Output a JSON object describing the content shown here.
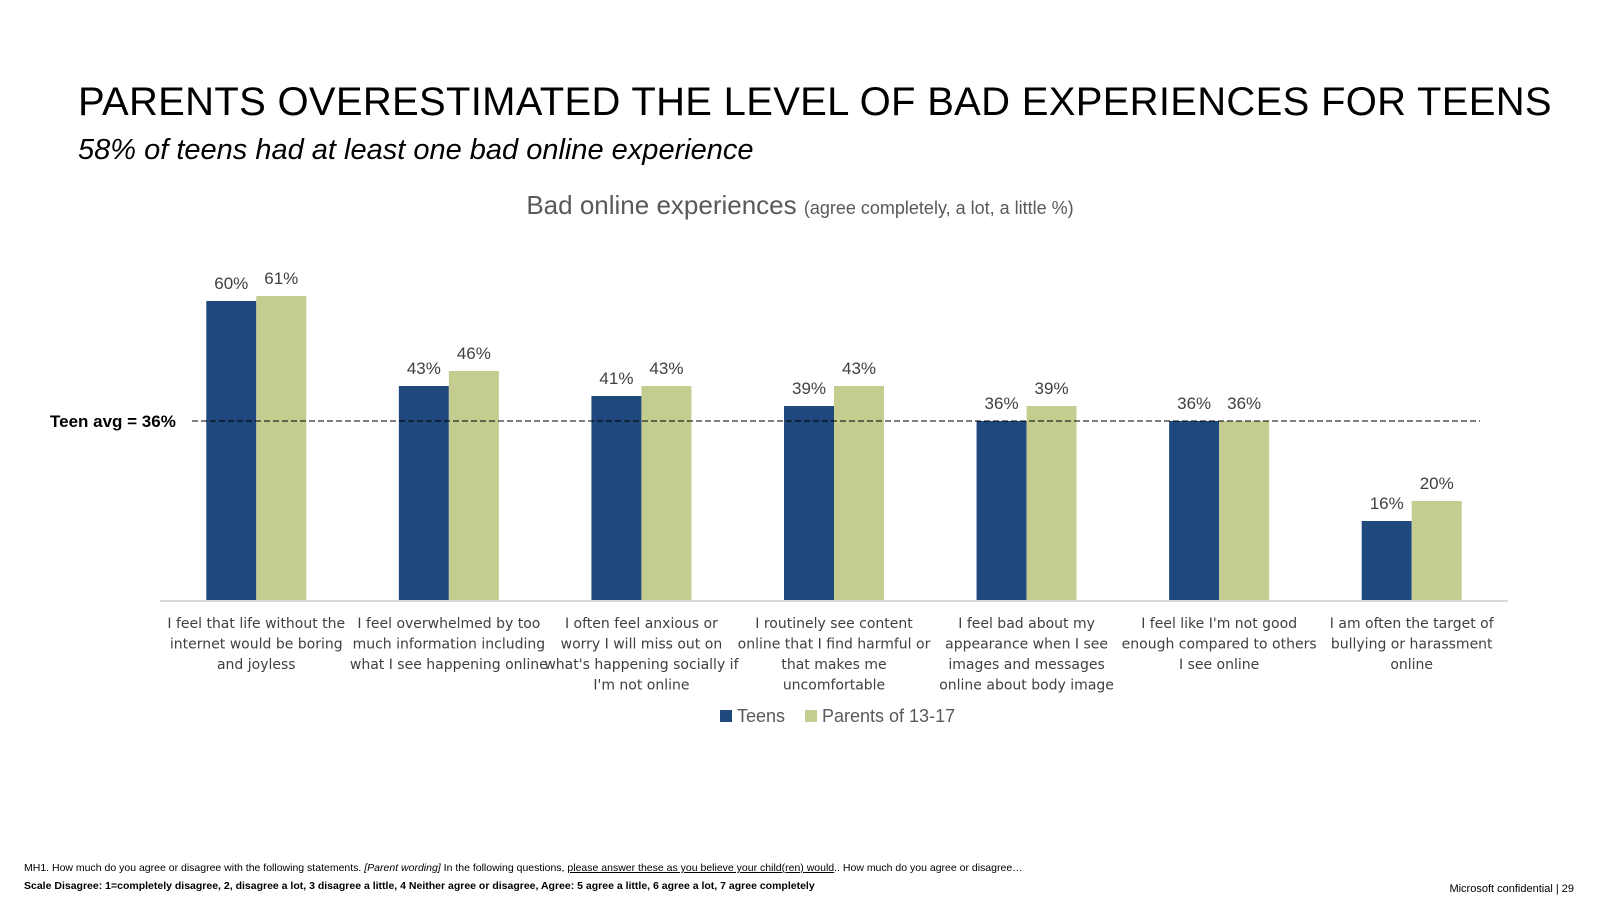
{
  "slide": {
    "title": "PARENTS OVERESTIMATED THE LEVEL OF BAD EXPERIENCES FOR TEENS",
    "subtitle": "58% of teens had at least one bad online experience",
    "footnote_part1": "MH1. How much do you agree or disagree with the following statements. ",
    "footnote_part2": "[Parent wording]",
    "footnote_part3": " In the following questions, ",
    "footnote_part4": "please answer these as you believe your child(ren) would",
    "footnote_part5": ".. How much do you agree or disagree…",
    "scale_note": "Scale Disagree: 1=completely disagree, 2, disagree a lot, 3 disagree a little, 4 Neither agree or disagree, Agree: 5 agree a little, 6 agree a lot, 7 agree completely",
    "confidential": "Microsoft confidential",
    "separator": "|",
    "page_number": "29"
  },
  "chart_data": {
    "type": "bar",
    "title": "Bad online experiences",
    "title_note": "(agree completely, a lot, a little %)",
    "categories": [
      [
        "I feel that life without the",
        "internet would be boring",
        "and joyless"
      ],
      [
        "I feel overwhelmed by too",
        "much information including",
        "what I see happening online"
      ],
      [
        "I often feel anxious or",
        "worry I will miss out on",
        "what's happening socially if",
        "I'm not online"
      ],
      [
        "I routinely see content",
        "online that I find harmful or",
        "that makes me",
        "uncomfortable"
      ],
      [
        "I feel bad about my",
        "appearance when I see",
        "images and messages",
        "online about body image"
      ],
      [
        "I feel like I'm not good",
        "enough compared to others",
        "I see online"
      ],
      [
        "I am often the target of",
        "bullying or harassment",
        "online"
      ]
    ],
    "series": [
      {
        "name": "Teens",
        "color": "#1F497D",
        "values": [
          60,
          43,
          41,
          39,
          36,
          36,
          16
        ],
        "labels": [
          "60%",
          "43%",
          "41%",
          "39%",
          "36%",
          "36%",
          "16%"
        ]
      },
      {
        "name": "Parents of 13-17",
        "color": "#C4CC8F",
        "values": [
          61,
          46,
          43,
          43,
          39,
          36,
          20
        ],
        "labels": [
          "61%",
          "46%",
          "43%",
          "43%",
          "39%",
          "36%",
          "20%"
        ]
      }
    ],
    "reference_line": {
      "label": "Teen avg = 36%",
      "value": 36
    },
    "ylim": [
      0,
      62
    ],
    "legend": "bottom-center",
    "grid": false
  }
}
